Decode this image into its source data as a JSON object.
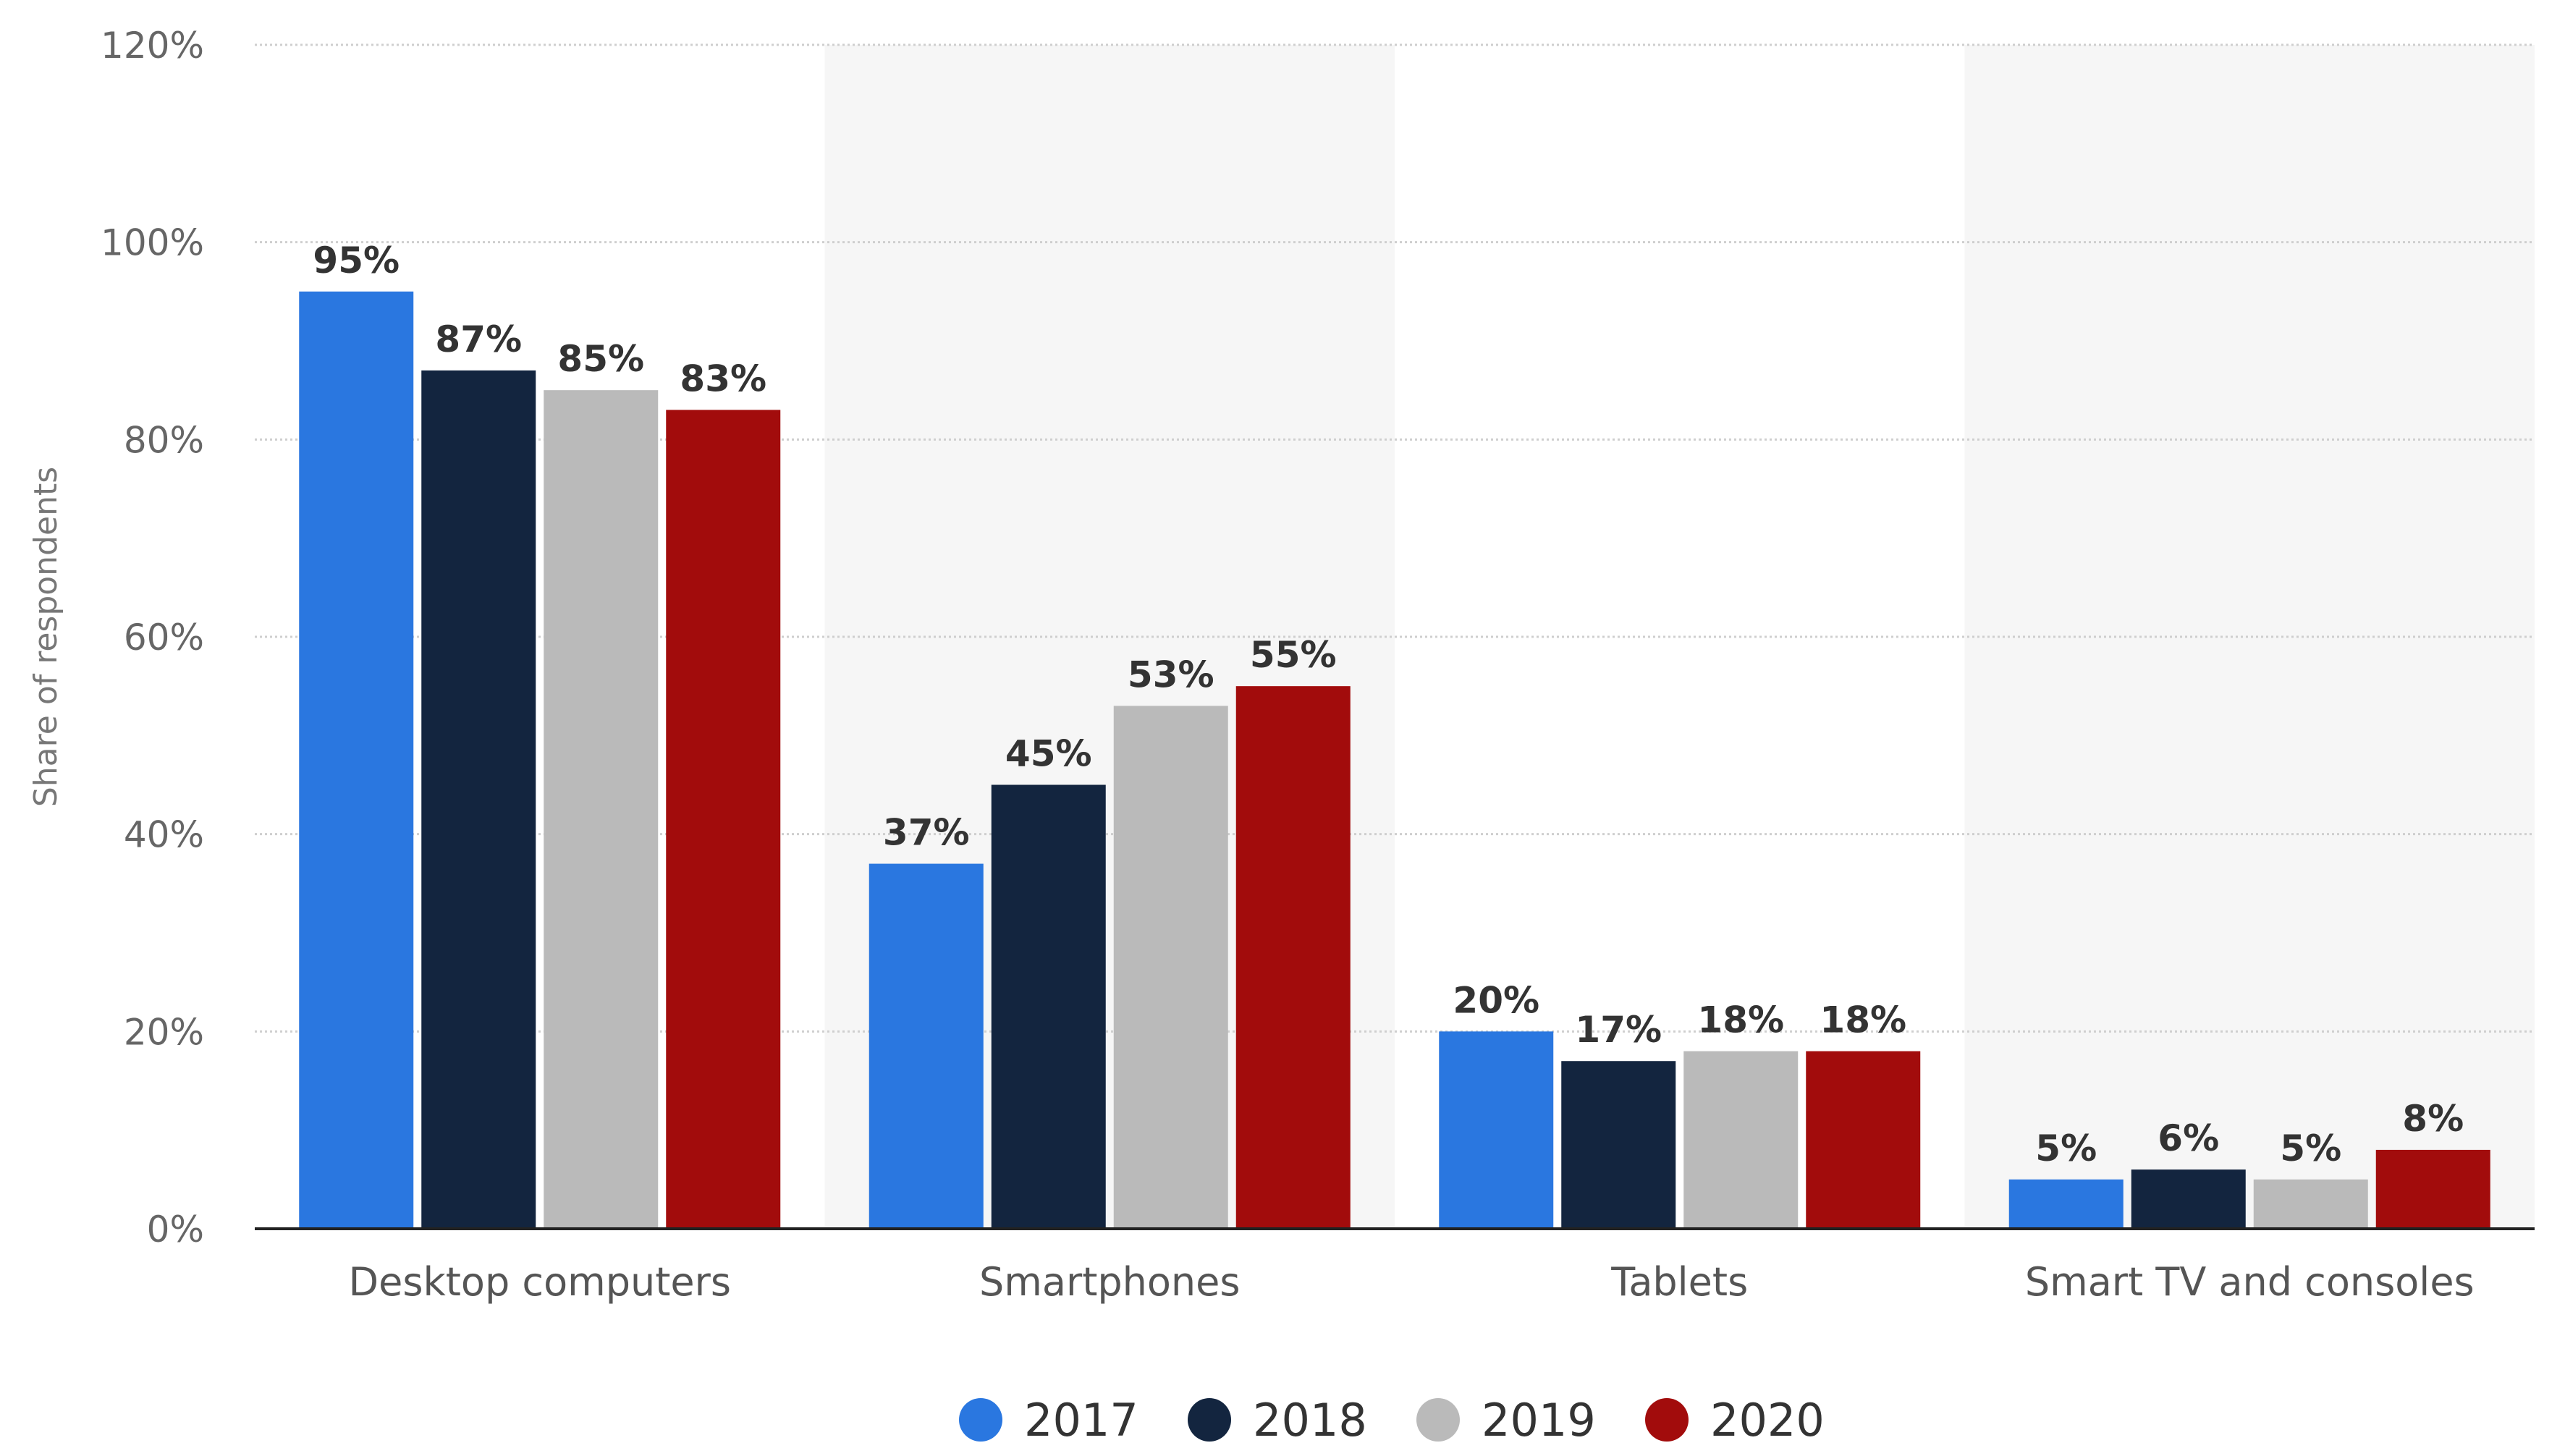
{
  "chart_data": {
    "type": "bar",
    "title": "",
    "xlabel": "",
    "ylabel": "Share of respondents",
    "categories": [
      "Desktop computers",
      "Smartphones",
      "Tablets",
      "Smart TV and consoles"
    ],
    "series": [
      {
        "name": "2017",
        "color": "#2a77e0",
        "values": [
          95,
          37,
          20,
          5
        ]
      },
      {
        "name": "2018",
        "color": "#13253f",
        "values": [
          87,
          45,
          17,
          6
        ]
      },
      {
        "name": "2019",
        "color": "#bababa",
        "values": [
          85,
          53,
          18,
          5
        ]
      },
      {
        "name": "2020",
        "color": "#a20c0c",
        "values": [
          83,
          55,
          18,
          8
        ]
      }
    ],
    "ylim": [
      0,
      120
    ],
    "yticks": [
      0,
      20,
      40,
      60,
      80,
      100,
      120
    ],
    "ytick_labels": [
      "0%",
      "20%",
      "40%",
      "60%",
      "80%",
      "100%",
      "120%"
    ],
    "value_suffix": "%",
    "legend_position": "bottom-center",
    "grid": true,
    "colors": {
      "gridline": "#cfcfcf",
      "axis": "#222222",
      "band": "#f6f6f6"
    }
  }
}
